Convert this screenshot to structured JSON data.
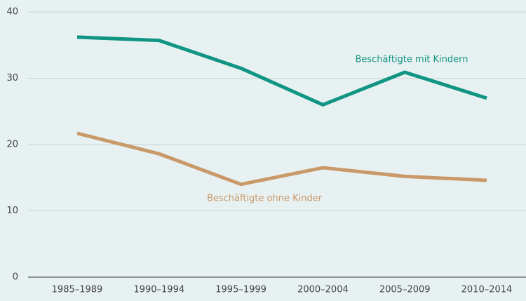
{
  "chart_data": {
    "type": "line",
    "categories": [
      "1985–1989",
      "1990–1994",
      "1995–1999",
      "2000–2004",
      "2005–2009",
      "2010–2014"
    ],
    "series": [
      {
        "name": "Beschäftigte mit Kindern",
        "color": "#0f9582",
        "values": [
          36.2,
          35.7,
          31.5,
          26.0,
          30.9,
          27.0
        ]
      },
      {
        "name": "Beschäftigte ohne Kinder",
        "color": "#c9996a",
        "values": [
          21.7,
          18.6,
          14.0,
          16.5,
          15.2,
          14.6
        ]
      }
    ],
    "ylim": [
      0,
      40
    ],
    "yticks": [
      0,
      10,
      20,
      30,
      40
    ],
    "grid": true
  }
}
